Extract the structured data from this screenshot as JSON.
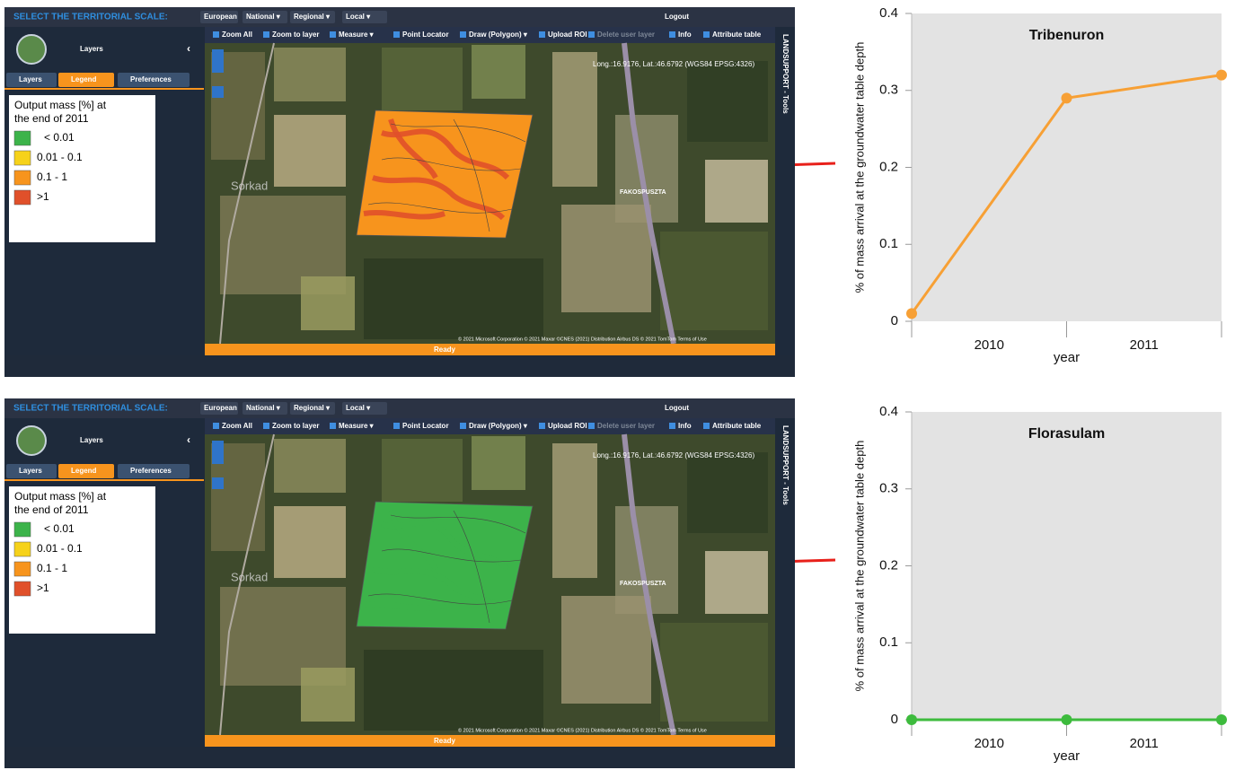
{
  "app": {
    "scale_label": "SELECT THE TERRITORIAL SCALE:",
    "scales": [
      "European",
      "National ▾",
      "Regional ▾",
      "Local ▾"
    ],
    "logout": "Logout",
    "sidebar_title": "Layers",
    "tabs": [
      "Layers",
      "Legend",
      "Preferences"
    ],
    "tools": [
      "Zoom All",
      "Zoom to layer",
      "Measure ▾",
      "Point Locator",
      "Draw (Polygon) ▾",
      "Upload ROI",
      "Delete user layer",
      "Info",
      "Attribute table"
    ],
    "coordinates": "Long.:16.9176, Lat.:46.6792 (WGS84 EPSG:4326)",
    "side_panel": "LANDSUPPORT - Tools",
    "place_labels": [
      "Sorkad",
      "FAKOSPUSZTA"
    ],
    "attribution": "© 2021 Microsoft Corporation © 2021 Maxar ©CNES (2021) Distribution Airbus DS © 2021 TomTom Terms of Use",
    "status": "Ready",
    "legend": {
      "title_lines": [
        "Output mass [%] at",
        "the end of 2011"
      ],
      "items": [
        {
          "label": "< 0.01",
          "color": "#3cb34a"
        },
        {
          "label": "0.01 - 0.1",
          "color": "#f6d21a"
        },
        {
          "label": "0.1 - 1",
          "color": "#f7941d"
        },
        {
          "label": ">1",
          "color": "#e0502a"
        }
      ]
    }
  },
  "panels": [
    {
      "layer_color": "#f7941d",
      "hotspot_color": "#e0502a"
    },
    {
      "layer_color": "#3cb34a",
      "hotspot_color": "#3cb34a"
    }
  ],
  "chart_data": [
    {
      "type": "line",
      "title": "Tribenuron",
      "y_label": "% of  mass arrival at the groundwater table depth",
      "x_label": "year",
      "categories": [
        null,
        null,
        null
      ],
      "period_labels": [
        "2010",
        "2011"
      ],
      "values": [
        0.01,
        0.29,
        0.32
      ],
      "color": "#f7a035",
      "ylim": [
        0,
        0.4
      ],
      "yticks": [
        0,
        0.1,
        0.2,
        0.3,
        0.4
      ]
    },
    {
      "type": "line",
      "title": "Florasulam",
      "y_label": "% of  mass arrival at the groundwater table depth",
      "x_label": "year",
      "categories": [
        null,
        null,
        null
      ],
      "period_labels": [
        "2010",
        "2011"
      ],
      "values": [
        0,
        0,
        0
      ],
      "color": "#3dbb3d",
      "ylim": [
        0,
        0.4
      ],
      "yticks": [
        0,
        0.1,
        0.2,
        0.3,
        0.4
      ]
    }
  ]
}
